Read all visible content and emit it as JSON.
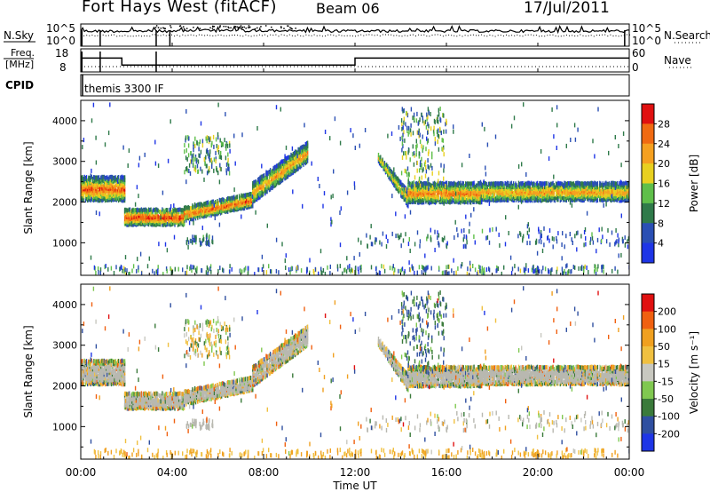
{
  "header": {
    "title": "Fort Hays West (fitACF)",
    "beam": "Beam 06",
    "date": "17/Jul/2011"
  },
  "status_panels": {
    "nsky": {
      "left_label": "N.Sky",
      "ticks": [
        "10^5",
        "10^0"
      ],
      "right_ticks": [
        "10^5",
        "10^0"
      ],
      "right_label": "N.Search",
      "right_legend_style": "dotted"
    },
    "freq": {
      "left_label_lines": [
        "Freq.",
        "[MHz]"
      ],
      "ticks": [
        "18",
        "8"
      ],
      "right_ticks": [
        "60",
        "0"
      ],
      "right_label": "Nave",
      "right_legend_style": "dotted"
    },
    "cpid": {
      "label": "CPID",
      "program": "themis 3300 IF"
    }
  },
  "panels": {
    "power": {
      "ylabel": "Slant Range [km]",
      "y_ticks": [
        "1000",
        "2000",
        "3000",
        "4000"
      ],
      "colorbar_label": "Power [dB]",
      "colorbar_ticks": [
        "4",
        "8",
        "12",
        "16",
        "20",
        "24",
        "28"
      ]
    },
    "velocity": {
      "ylabel": "Slant Range [km]",
      "y_ticks": [
        "1000",
        "2000",
        "3000",
        "4000"
      ],
      "colorbar_label": "Velocity [m s⁻¹]",
      "colorbar_ticks": [
        "200",
        "100",
        "50",
        "15",
        "-15",
        "-50",
        "-100",
        "-200"
      ]
    }
  },
  "x_axis": {
    "ticks": [
      "00:00",
      "04:00",
      "08:00",
      "12:00",
      "16:00",
      "20:00",
      "00:00"
    ],
    "label": "Time UT"
  },
  "colors": {
    "power_scale": [
      "#1e35e6",
      "#2a4fb4",
      "#2f7a4a",
      "#5fbf4a",
      "#e8d020",
      "#f5a020",
      "#f06a12",
      "#e01010"
    ],
    "velocity_scale": [
      "#1e35e6",
      "#2f4fa0",
      "#3a7a3a",
      "#80c850",
      "#c8c8c0",
      "#f0c040",
      "#f0a020",
      "#f06010",
      "#e01010"
    ],
    "ground_scatter": "#b8b8b0"
  },
  "chart_data": {
    "type": "heatmap",
    "title": "Fort Hays West (fitACF)",
    "subtitle": "Beam 06",
    "date": "17/Jul/2011",
    "x_unit": "UT hours",
    "xlim": [
      0,
      24
    ],
    "ylim": [
      200,
      4500
    ],
    "power": {
      "zlim": [
        0,
        30
      ],
      "zlabel": "Power [dB]",
      "bands": [
        {
          "from": 0.0,
          "to": 1.9,
          "lo": 2050,
          "hi": 2650,
          "peak": 26
        },
        {
          "from": 1.9,
          "to": 4.5,
          "lo": 1450,
          "hi": 1850,
          "peak": 28
        },
        {
          "from": 4.5,
          "to": 7.5,
          "lo": 1550,
          "hi": 2100,
          "peak": 26
        },
        {
          "from": 7.5,
          "to": 9.9,
          "lo": 2100,
          "hi": 3500,
          "peak": 22
        },
        {
          "from": 13.0,
          "to": 14.3,
          "lo": 1800,
          "hi": 3000,
          "peak": 20
        },
        {
          "from": 14.3,
          "to": 17.5,
          "lo": 2000,
          "hi": 2500,
          "peak": 24
        },
        {
          "from": 17.5,
          "to": 24.0,
          "lo": 2050,
          "hi": 2500,
          "peak": 22
        }
      ]
    },
    "velocity": {
      "zlim": [
        -200,
        200
      ],
      "zlabel": "Velocity [m s⁻¹]",
      "note_ground_scatter": "grey"
    },
    "nsky": {
      "ylim": [
        "10^0",
        "10^5"
      ]
    },
    "frequency": {
      "unit": "MHz",
      "ylim": [
        8,
        18
      ],
      "segments": [
        {
          "from": 0.0,
          "to": 1.8,
          "value": 14
        },
        {
          "from": 1.8,
          "to": 12.0,
          "value": 11
        },
        {
          "from": 12.0,
          "to": 24.0,
          "value": 14
        }
      ]
    },
    "nave": {
      "ylim": [
        0,
        60
      ]
    },
    "cpid": "themis 3300 IF"
  }
}
